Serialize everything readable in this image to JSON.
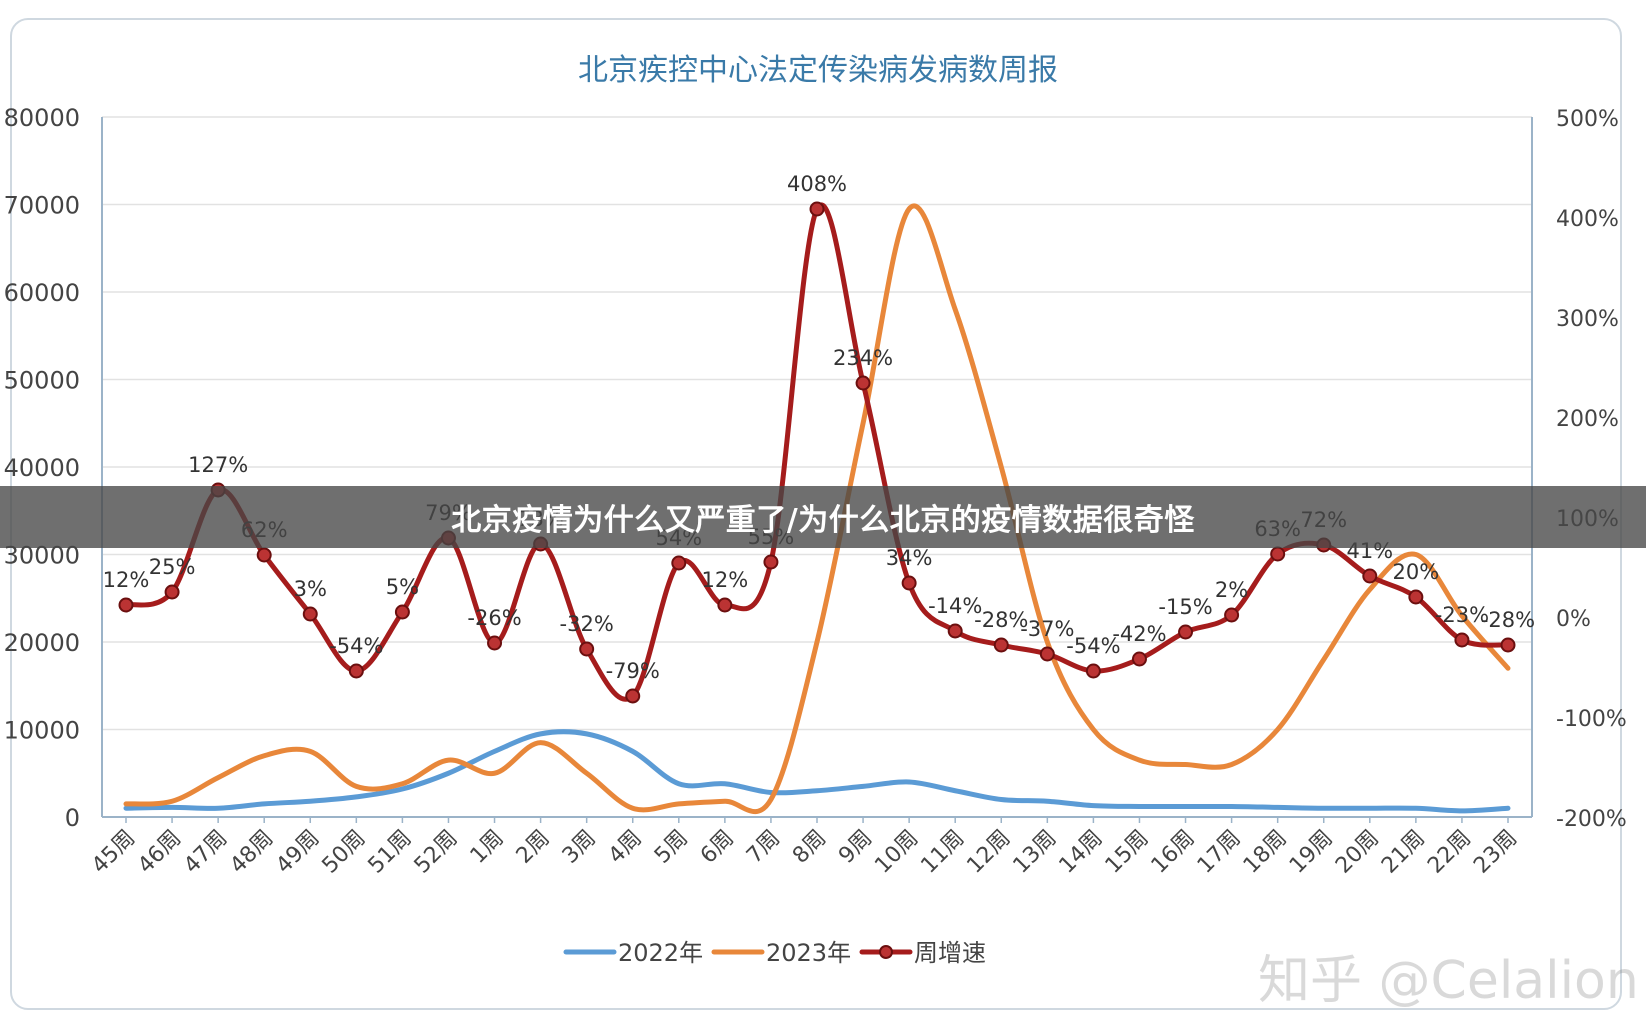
{
  "banner_text": "北京疫情为什么又严重了/为什么北京的疫情数据很奇怪",
  "watermark": "知乎 @Celalion",
  "colors": {
    "series_2022": "#5b9bd5",
    "series_2023": "#e8873a",
    "series_growth": "#a51c1c",
    "title": "#3a7aa8",
    "axis_text": "#444444",
    "grid": "#e2e2e2"
  },
  "chart_data": {
    "type": "line",
    "title": "北京疾控中心法定传染病发病数周报",
    "categories": [
      "45周",
      "46周",
      "47周",
      "48周",
      "49周",
      "50周",
      "51周",
      "52周",
      "1周",
      "2周",
      "3周",
      "4周",
      "5周",
      "6周",
      "7周",
      "8周",
      "9周",
      "10周",
      "11周",
      "12周",
      "13周",
      "14周",
      "15周",
      "16周",
      "17周",
      "18周",
      "19周",
      "20周",
      "21周",
      "22周",
      "23周"
    ],
    "y_left": {
      "min": 0,
      "max": 80000,
      "ticks": [
        "0",
        "10000",
        "20000",
        "30000",
        "40000",
        "50000",
        "60000",
        "70000",
        "80000"
      ]
    },
    "y_right": {
      "min": -200,
      "max": 500,
      "ticks": [
        "-200%",
        "-100%",
        "0%",
        "100%",
        "200%",
        "300%",
        "400%",
        "500%"
      ]
    },
    "legend_position": "bottom",
    "series": [
      {
        "name": "2022年",
        "axis": "left",
        "values": [
          1000,
          1100,
          1000,
          1500,
          1800,
          2300,
          3200,
          5000,
          7500,
          9500,
          9500,
          7500,
          3800,
          3800,
          2800,
          3000,
          3500,
          4000,
          3000,
          2000,
          1800,
          1300,
          1200,
          1200,
          1200,
          1100,
          1000,
          1000,
          1000,
          700,
          1000
        ]
      },
      {
        "name": "2023年",
        "axis": "left",
        "values": [
          1500,
          1800,
          4500,
          7000,
          7500,
          3500,
          3800,
          6500,
          5000,
          8500,
          5000,
          1000,
          1500,
          1800,
          2000,
          20000,
          45000,
          69500,
          58000,
          40000,
          20000,
          10000,
          6500,
          6000,
          6000,
          10000,
          18000,
          26000,
          30000,
          23000,
          17000
        ]
      },
      {
        "name": "周增速",
        "axis": "right",
        "values": [
          12,
          25,
          127,
          62,
          3,
          -54,
          5,
          79,
          -26,
          73,
          -32,
          -79,
          54,
          12,
          55,
          408,
          234,
          34,
          -14,
          -28,
          -37,
          -54,
          -42,
          -15,
          2,
          63,
          72,
          41,
          20,
          -23,
          -28
        ],
        "labels": [
          "12%",
          "25%",
          "127%",
          "62%",
          "3%",
          "-54%",
          "5%",
          "79%",
          "-26%",
          "73%",
          "-32%",
          "-79%",
          "54%",
          "12%",
          "55%",
          "408%",
          "234%",
          "34%",
          "-14%",
          "-28%",
          "-37%",
          "-54%",
          "-42%",
          "-15%",
          "2%",
          "63%",
          "72%",
          "41%",
          "20%",
          "-23%",
          "-28%"
        ]
      }
    ]
  }
}
